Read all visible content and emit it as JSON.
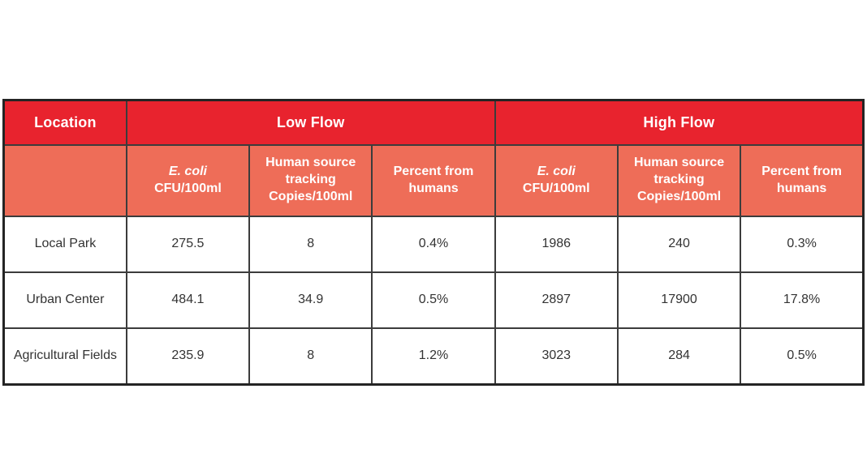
{
  "colors": {
    "header_red": "#e8232e",
    "subheader_salmon": "#ee6d58",
    "border_dark": "#3c3c3c",
    "body_text": "#333333",
    "header_text": "#ffffff"
  },
  "table": {
    "header": {
      "location": "Location",
      "groups": [
        {
          "label": "Low Flow"
        },
        {
          "label": "High Flow"
        }
      ],
      "subheaders": {
        "low_ecoli": {
          "italic": "E. coli",
          "unit": "CFU/100ml"
        },
        "low_hst": "Human source tracking Copies/100ml",
        "low_percent": "Percent from humans",
        "high_ecoli": {
          "italic": "E. coli",
          "unit": "CFU/100ml"
        },
        "high_hst": "Human source tracking Copies/100ml",
        "high_percent": "Percent from humans"
      }
    },
    "rows": [
      {
        "location": "Local Park",
        "values": [
          "275.5",
          "8",
          "0.4%",
          "1986",
          "240",
          "0.3%"
        ]
      },
      {
        "location": "Urban Center",
        "values": [
          "484.1",
          "34.9",
          "0.5%",
          "2897",
          "17900",
          "17.8%"
        ]
      },
      {
        "location": "Agricultural Fields",
        "values": [
          "235.9",
          "8",
          "1.2%",
          "3023",
          "284",
          "0.5%"
        ]
      }
    ]
  },
  "chart_data": {
    "type": "table",
    "title": "",
    "column_groups": [
      "",
      "Low Flow",
      "Low Flow",
      "Low Flow",
      "High Flow",
      "High Flow",
      "High Flow"
    ],
    "columns": [
      "Location",
      "E. coli CFU/100ml (Low Flow)",
      "Human source tracking Copies/100ml (Low Flow)",
      "Percent from humans (Low Flow)",
      "E. coli CFU/100ml (High Flow)",
      "Human source tracking Copies/100ml (High Flow)",
      "Percent from humans (High Flow)"
    ],
    "rows": [
      [
        "Local Park",
        275.5,
        8,
        0.4,
        1986,
        240,
        0.3
      ],
      [
        "Urban Center",
        484.1,
        34.9,
        0.5,
        2897,
        17900,
        17.8
      ],
      [
        "Agricultural Fields",
        235.9,
        8,
        1.2,
        3023,
        284,
        0.5
      ]
    ],
    "percent_unit": "%",
    "legend_position": "none",
    "grid": true
  }
}
